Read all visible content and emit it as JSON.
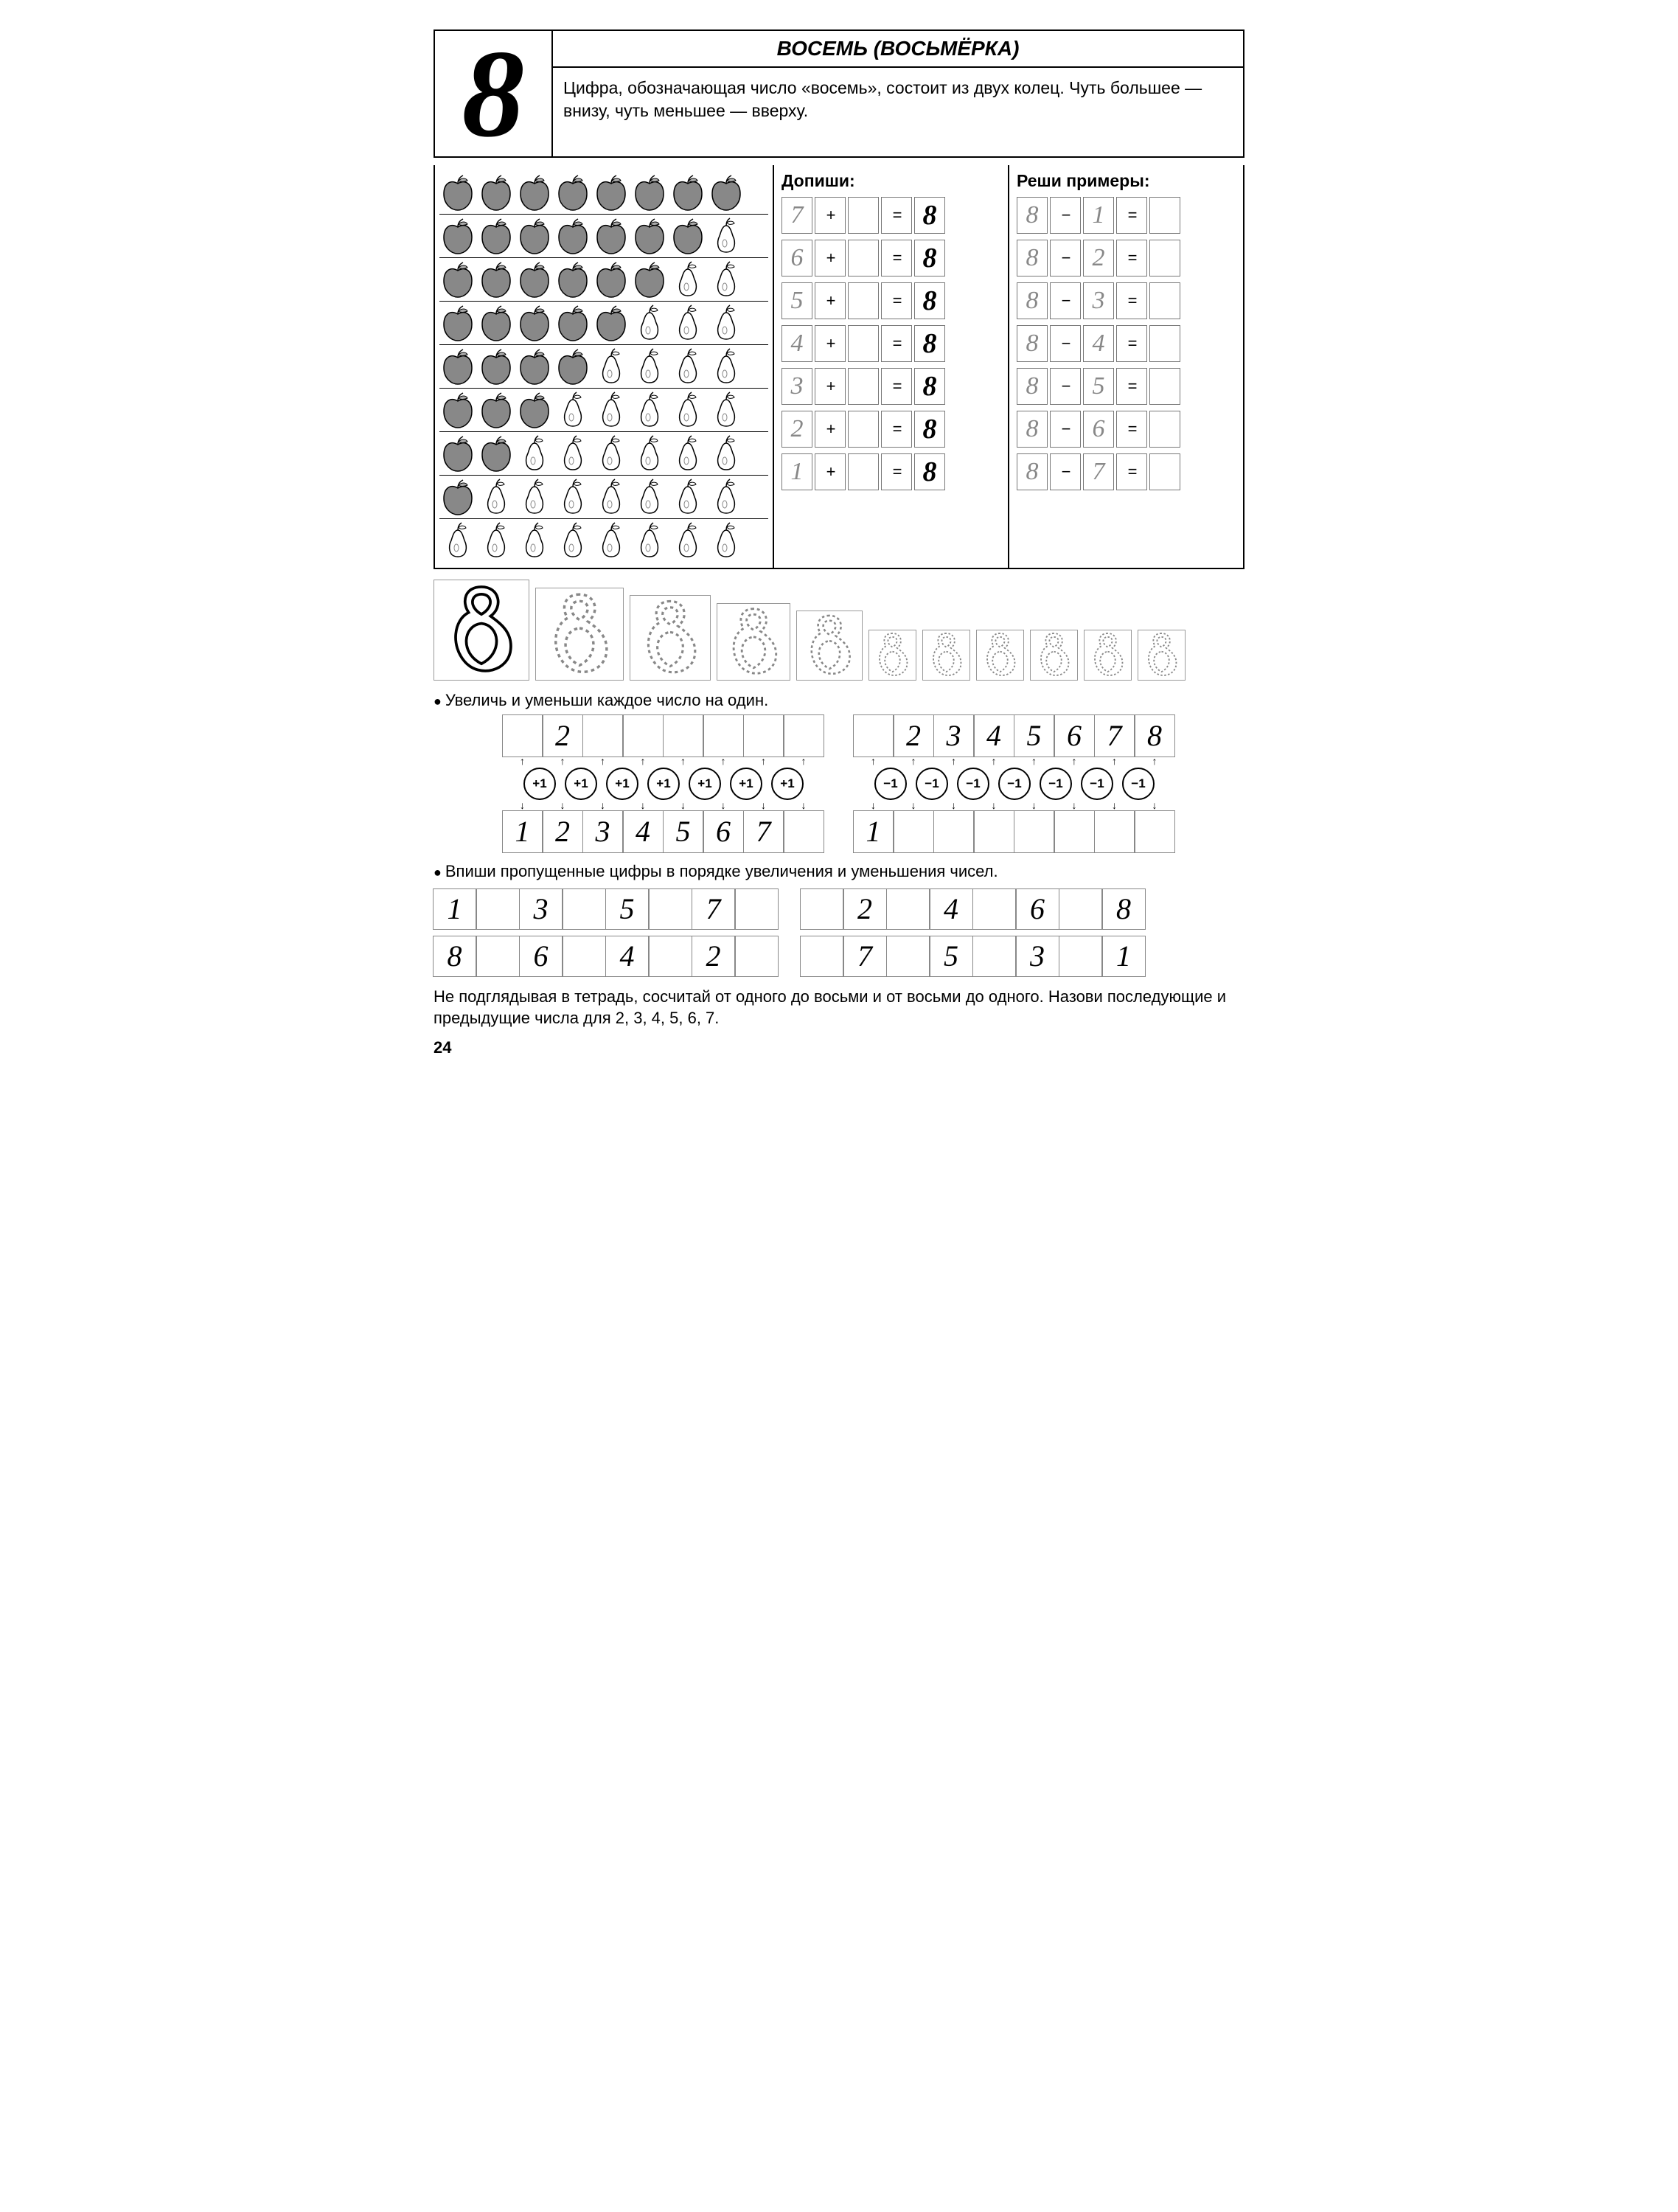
{
  "header": {
    "big_digit": "8",
    "title": "ВОСЕМЬ (ВОСЬМЁРКА)",
    "description": "Цифра, обозначающая число «восемь», состоит из двух колец. Чуть большее — внизу, чуть меньшее — вверху."
  },
  "fruit_rows": [
    {
      "apples": 8,
      "pears": 0
    },
    {
      "apples": 7,
      "pears": 1
    },
    {
      "apples": 6,
      "pears": 2
    },
    {
      "apples": 5,
      "pears": 3
    },
    {
      "apples": 4,
      "pears": 4
    },
    {
      "apples": 3,
      "pears": 5
    },
    {
      "apples": 2,
      "pears": 6
    },
    {
      "apples": 1,
      "pears": 7
    },
    {
      "apples": 0,
      "pears": 8
    }
  ],
  "complete_col": {
    "title": "Допиши:",
    "rows": [
      {
        "a": "7",
        "op": "+",
        "b": "",
        "eq": "=",
        "r": "8"
      },
      {
        "a": "6",
        "op": "+",
        "b": "",
        "eq": "=",
        "r": "8"
      },
      {
        "a": "5",
        "op": "+",
        "b": "",
        "eq": "=",
        "r": "8"
      },
      {
        "a": "4",
        "op": "+",
        "b": "",
        "eq": "=",
        "r": "8"
      },
      {
        "a": "3",
        "op": "+",
        "b": "",
        "eq": "=",
        "r": "8"
      },
      {
        "a": "2",
        "op": "+",
        "b": "",
        "eq": "=",
        "r": "8"
      },
      {
        "a": "1",
        "op": "+",
        "b": "",
        "eq": "=",
        "r": "8"
      }
    ]
  },
  "solve_col": {
    "title": "Реши примеры:",
    "rows": [
      {
        "a": "8",
        "op": "−",
        "b": "1",
        "eq": "=",
        "r": ""
      },
      {
        "a": "8",
        "op": "−",
        "b": "2",
        "eq": "=",
        "r": ""
      },
      {
        "a": "8",
        "op": "−",
        "b": "3",
        "eq": "=",
        "r": ""
      },
      {
        "a": "8",
        "op": "−",
        "b": "4",
        "eq": "=",
        "r": ""
      },
      {
        "a": "8",
        "op": "−",
        "b": "5",
        "eq": "=",
        "r": ""
      },
      {
        "a": "8",
        "op": "−",
        "b": "6",
        "eq": "=",
        "r": ""
      },
      {
        "a": "8",
        "op": "−",
        "b": "7",
        "eq": "=",
        "r": ""
      }
    ]
  },
  "tracing": {
    "sizes": [
      130,
      120,
      110,
      100,
      90,
      65,
      65,
      65,
      65,
      65,
      65
    ],
    "glyph": "8",
    "first_solid": true,
    "stroke_solid": "#000000",
    "stroke_traced": "#888888"
  },
  "task_increment": {
    "title": "Увеличь и уменьши каждое число на один.",
    "left": {
      "top": [
        "",
        "2",
        "",
        "",
        "",
        "",
        "",
        ""
      ],
      "ops": [
        "+1",
        "+1",
        "+1",
        "+1",
        "+1",
        "+1",
        "+1"
      ],
      "bottom": [
        "1",
        "2",
        "3",
        "4",
        "5",
        "6",
        "7",
        ""
      ]
    },
    "right": {
      "top": [
        "",
        "2",
        "3",
        "4",
        "5",
        "6",
        "7",
        "8"
      ],
      "ops": [
        "−1",
        "−1",
        "−1",
        "−1",
        "−1",
        "−1",
        "−1"
      ],
      "bottom": [
        "1",
        "",
        "",
        "",
        "",
        "",
        "",
        ""
      ]
    }
  },
  "task_fill": {
    "title": "Впиши пропущенные цифры в порядке увеличения и уменьшения чисел.",
    "row1_left": [
      "1",
      "",
      "3",
      "",
      "5",
      "",
      "7",
      ""
    ],
    "row1_right": [
      "",
      "2",
      "",
      "4",
      "",
      "6",
      "",
      "8"
    ],
    "row2_left": [
      "8",
      "",
      "6",
      "",
      "4",
      "",
      "2",
      ""
    ],
    "row2_right": [
      "",
      "7",
      "",
      "5",
      "",
      "3",
      "",
      "1"
    ]
  },
  "final_instruction": "Не подглядывая в тетрадь, сосчитай от одного до восьми и от восьми до одного. Назови последующие и предыдущие числа для 2, 3, 4, 5, 6, 7.",
  "page_number": "24"
}
